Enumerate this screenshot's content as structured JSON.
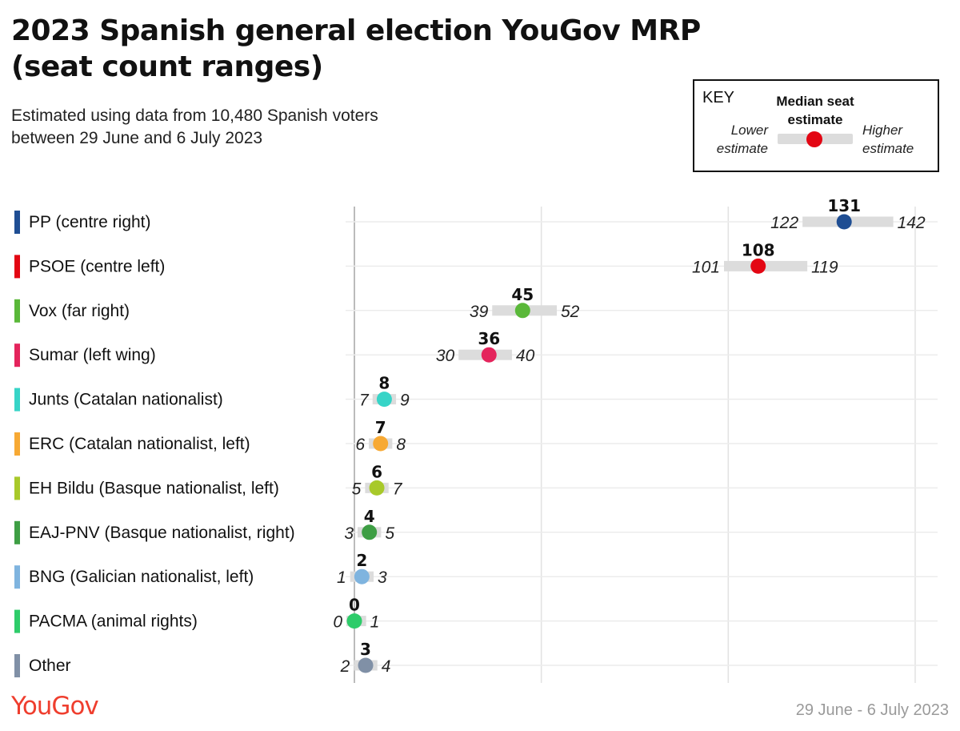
{
  "header": {
    "title": "2023 Spanish general election YouGov MRP (seat count ranges)",
    "subtitle_line1": "Estimated using data from 10,480 Spanish voters",
    "subtitle_line2": "between 29 June and 6 July 2023"
  },
  "key": {
    "title": "KEY",
    "median_label_line1": "Median seat",
    "median_label_line2": "estimate",
    "lower_label_line1": "Lower",
    "lower_label_line2": "estimate",
    "higher_label_line1": "Higher",
    "higher_label_line2": "estimate",
    "dot_color": "#e30613"
  },
  "footer": {
    "logo": "YouGov",
    "logo_color": "#ef3e2e",
    "date": "29 June - 6 July 2023"
  },
  "chart_data": {
    "type": "dot-range",
    "x_domain": [
      0,
      150
    ],
    "gridlines": [
      0,
      50,
      100,
      150
    ],
    "range_bar_color": "#dcdcdc",
    "rows": [
      {
        "party": "PP (centre right)",
        "median": 131,
        "low": 122,
        "high": 142,
        "color": "#1f4e93"
      },
      {
        "party": "PSOE (centre left)",
        "median": 108,
        "low": 101,
        "high": 119,
        "color": "#e30613"
      },
      {
        "party": "Vox (far right)",
        "median": 45,
        "low": 39,
        "high": 52,
        "color": "#5ab839"
      },
      {
        "party": "Sumar (left wing)",
        "median": 36,
        "low": 30,
        "high": 40,
        "color": "#e4245c"
      },
      {
        "party": "Junts (Catalan nationalist)",
        "median": 8,
        "low": 7,
        "high": 9,
        "color": "#37d4c7"
      },
      {
        "party": "ERC (Catalan nationalist, left)",
        "median": 7,
        "low": 6,
        "high": 8,
        "color": "#f7a934"
      },
      {
        "party": "EH Bildu (Basque nationalist, left)",
        "median": 6,
        "low": 5,
        "high": 7,
        "color": "#a8c92a"
      },
      {
        "party": "EAJ-PNV (Basque nationalist, right)",
        "median": 4,
        "low": 3,
        "high": 5,
        "color": "#3e9e44"
      },
      {
        "party": "BNG (Galician nationalist, left)",
        "median": 2,
        "low": 1,
        "high": 3,
        "color": "#7fb4df"
      },
      {
        "party": "PACMA (animal rights)",
        "median": 0,
        "low": 0,
        "high": 1,
        "color": "#2ecc6a"
      },
      {
        "party": "Other",
        "median": 3,
        "low": 2,
        "high": 4,
        "color": "#8090a6"
      }
    ]
  }
}
